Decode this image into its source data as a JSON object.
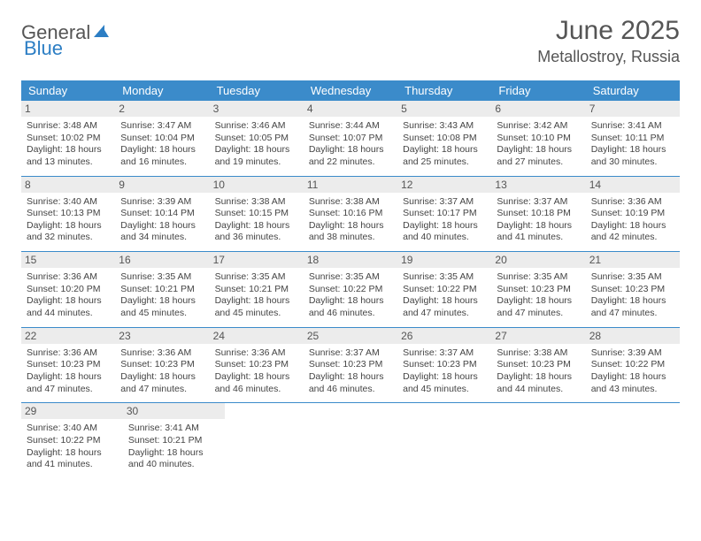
{
  "brand": {
    "text1": "General",
    "text2": "Blue",
    "sail_color": "#2c7ec4",
    "text1_color": "#555555",
    "text2_color": "#2c7ec4"
  },
  "title": {
    "month": "June 2025",
    "location": "Metallostroy, Russia",
    "month_fontsize": 30,
    "location_fontsize": 18,
    "title_color": "#555555"
  },
  "colors": {
    "header_bg": "#3b8bca",
    "header_text": "#ffffff",
    "daynum_bg": "#ececec",
    "border": "#3b8bca",
    "body_text": "#444444",
    "page_bg": "#ffffff"
  },
  "dayNames": [
    "Sunday",
    "Monday",
    "Tuesday",
    "Wednesday",
    "Thursday",
    "Friday",
    "Saturday"
  ],
  "weeks": [
    [
      {
        "n": "1",
        "sunrise": "Sunrise: 3:48 AM",
        "sunset": "Sunset: 10:02 PM",
        "daylight1": "Daylight: 18 hours",
        "daylight2": "and 13 minutes."
      },
      {
        "n": "2",
        "sunrise": "Sunrise: 3:47 AM",
        "sunset": "Sunset: 10:04 PM",
        "daylight1": "Daylight: 18 hours",
        "daylight2": "and 16 minutes."
      },
      {
        "n": "3",
        "sunrise": "Sunrise: 3:46 AM",
        "sunset": "Sunset: 10:05 PM",
        "daylight1": "Daylight: 18 hours",
        "daylight2": "and 19 minutes."
      },
      {
        "n": "4",
        "sunrise": "Sunrise: 3:44 AM",
        "sunset": "Sunset: 10:07 PM",
        "daylight1": "Daylight: 18 hours",
        "daylight2": "and 22 minutes."
      },
      {
        "n": "5",
        "sunrise": "Sunrise: 3:43 AM",
        "sunset": "Sunset: 10:08 PM",
        "daylight1": "Daylight: 18 hours",
        "daylight2": "and 25 minutes."
      },
      {
        "n": "6",
        "sunrise": "Sunrise: 3:42 AM",
        "sunset": "Sunset: 10:10 PM",
        "daylight1": "Daylight: 18 hours",
        "daylight2": "and 27 minutes."
      },
      {
        "n": "7",
        "sunrise": "Sunrise: 3:41 AM",
        "sunset": "Sunset: 10:11 PM",
        "daylight1": "Daylight: 18 hours",
        "daylight2": "and 30 minutes."
      }
    ],
    [
      {
        "n": "8",
        "sunrise": "Sunrise: 3:40 AM",
        "sunset": "Sunset: 10:13 PM",
        "daylight1": "Daylight: 18 hours",
        "daylight2": "and 32 minutes."
      },
      {
        "n": "9",
        "sunrise": "Sunrise: 3:39 AM",
        "sunset": "Sunset: 10:14 PM",
        "daylight1": "Daylight: 18 hours",
        "daylight2": "and 34 minutes."
      },
      {
        "n": "10",
        "sunrise": "Sunrise: 3:38 AM",
        "sunset": "Sunset: 10:15 PM",
        "daylight1": "Daylight: 18 hours",
        "daylight2": "and 36 minutes."
      },
      {
        "n": "11",
        "sunrise": "Sunrise: 3:38 AM",
        "sunset": "Sunset: 10:16 PM",
        "daylight1": "Daylight: 18 hours",
        "daylight2": "and 38 minutes."
      },
      {
        "n": "12",
        "sunrise": "Sunrise: 3:37 AM",
        "sunset": "Sunset: 10:17 PM",
        "daylight1": "Daylight: 18 hours",
        "daylight2": "and 40 minutes."
      },
      {
        "n": "13",
        "sunrise": "Sunrise: 3:37 AM",
        "sunset": "Sunset: 10:18 PM",
        "daylight1": "Daylight: 18 hours",
        "daylight2": "and 41 minutes."
      },
      {
        "n": "14",
        "sunrise": "Sunrise: 3:36 AM",
        "sunset": "Sunset: 10:19 PM",
        "daylight1": "Daylight: 18 hours",
        "daylight2": "and 42 minutes."
      }
    ],
    [
      {
        "n": "15",
        "sunrise": "Sunrise: 3:36 AM",
        "sunset": "Sunset: 10:20 PM",
        "daylight1": "Daylight: 18 hours",
        "daylight2": "and 44 minutes."
      },
      {
        "n": "16",
        "sunrise": "Sunrise: 3:35 AM",
        "sunset": "Sunset: 10:21 PM",
        "daylight1": "Daylight: 18 hours",
        "daylight2": "and 45 minutes."
      },
      {
        "n": "17",
        "sunrise": "Sunrise: 3:35 AM",
        "sunset": "Sunset: 10:21 PM",
        "daylight1": "Daylight: 18 hours",
        "daylight2": "and 45 minutes."
      },
      {
        "n": "18",
        "sunrise": "Sunrise: 3:35 AM",
        "sunset": "Sunset: 10:22 PM",
        "daylight1": "Daylight: 18 hours",
        "daylight2": "and 46 minutes."
      },
      {
        "n": "19",
        "sunrise": "Sunrise: 3:35 AM",
        "sunset": "Sunset: 10:22 PM",
        "daylight1": "Daylight: 18 hours",
        "daylight2": "and 47 minutes."
      },
      {
        "n": "20",
        "sunrise": "Sunrise: 3:35 AM",
        "sunset": "Sunset: 10:23 PM",
        "daylight1": "Daylight: 18 hours",
        "daylight2": "and 47 minutes."
      },
      {
        "n": "21",
        "sunrise": "Sunrise: 3:35 AM",
        "sunset": "Sunset: 10:23 PM",
        "daylight1": "Daylight: 18 hours",
        "daylight2": "and 47 minutes."
      }
    ],
    [
      {
        "n": "22",
        "sunrise": "Sunrise: 3:36 AM",
        "sunset": "Sunset: 10:23 PM",
        "daylight1": "Daylight: 18 hours",
        "daylight2": "and 47 minutes."
      },
      {
        "n": "23",
        "sunrise": "Sunrise: 3:36 AM",
        "sunset": "Sunset: 10:23 PM",
        "daylight1": "Daylight: 18 hours",
        "daylight2": "and 47 minutes."
      },
      {
        "n": "24",
        "sunrise": "Sunrise: 3:36 AM",
        "sunset": "Sunset: 10:23 PM",
        "daylight1": "Daylight: 18 hours",
        "daylight2": "and 46 minutes."
      },
      {
        "n": "25",
        "sunrise": "Sunrise: 3:37 AM",
        "sunset": "Sunset: 10:23 PM",
        "daylight1": "Daylight: 18 hours",
        "daylight2": "and 46 minutes."
      },
      {
        "n": "26",
        "sunrise": "Sunrise: 3:37 AM",
        "sunset": "Sunset: 10:23 PM",
        "daylight1": "Daylight: 18 hours",
        "daylight2": "and 45 minutes."
      },
      {
        "n": "27",
        "sunrise": "Sunrise: 3:38 AM",
        "sunset": "Sunset: 10:23 PM",
        "daylight1": "Daylight: 18 hours",
        "daylight2": "and 44 minutes."
      },
      {
        "n": "28",
        "sunrise": "Sunrise: 3:39 AM",
        "sunset": "Sunset: 10:22 PM",
        "daylight1": "Daylight: 18 hours",
        "daylight2": "and 43 minutes."
      }
    ],
    [
      {
        "n": "29",
        "sunrise": "Sunrise: 3:40 AM",
        "sunset": "Sunset: 10:22 PM",
        "daylight1": "Daylight: 18 hours",
        "daylight2": "and 41 minutes."
      },
      {
        "n": "30",
        "sunrise": "Sunrise: 3:41 AM",
        "sunset": "Sunset: 10:21 PM",
        "daylight1": "Daylight: 18 hours",
        "daylight2": "and 40 minutes."
      },
      null,
      null,
      null,
      null,
      null
    ]
  ]
}
